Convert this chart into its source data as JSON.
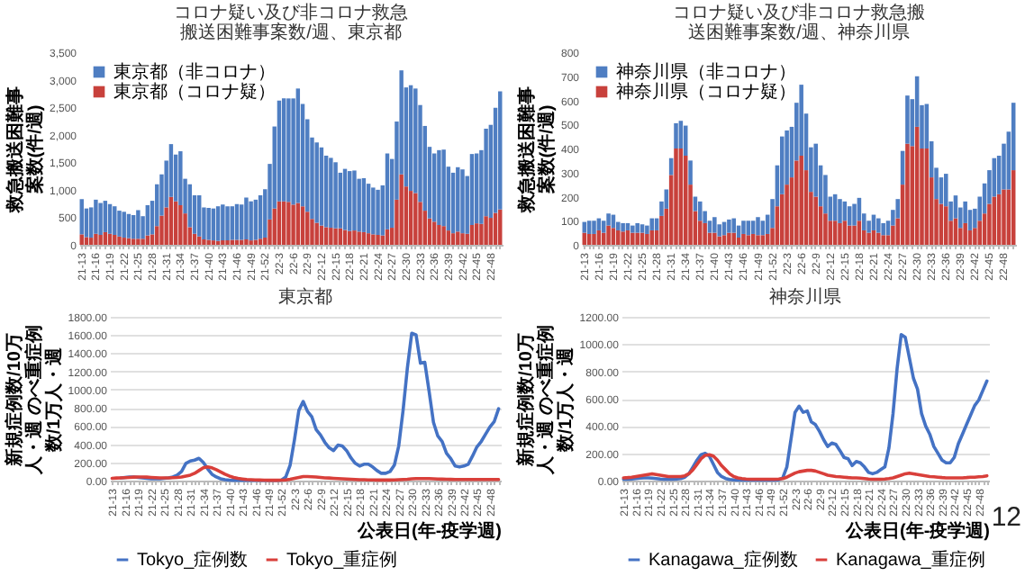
{
  "chart_data": [
    {
      "type": "bar",
      "stacked": true,
      "title": "コロナ疑い及び非コロナ救急搬送困難事案数/週、東京都",
      "ylabel": "救急搬送困難事案数(件/週)",
      "legend": "top left",
      "categories": [
        "21-13",
        null,
        null,
        "21-16",
        null,
        null,
        "21-19",
        null,
        null,
        "21-22",
        null,
        null,
        "21-25",
        null,
        null,
        "21-28",
        null,
        null,
        "21-31",
        null,
        null,
        "21-34",
        null,
        null,
        "21-37",
        null,
        null,
        "21-40",
        null,
        null,
        "21-43",
        null,
        null,
        "21-46",
        null,
        null,
        "21-49",
        null,
        null,
        "21-52",
        null,
        null,
        "22-3",
        null,
        null,
        "22-6",
        null,
        null,
        "22-9",
        null,
        null,
        "22-12",
        null,
        null,
        "22-15",
        null,
        null,
        "22-18",
        null,
        null,
        "22-21",
        null,
        null,
        "22-24",
        null,
        null,
        "22-27",
        null,
        null,
        "22-30",
        null,
        null,
        "22-33",
        null,
        null,
        "22-36",
        null,
        null,
        "22-39",
        null,
        null,
        "22-42",
        null,
        null,
        "22-45",
        null,
        null,
        "22-48",
        null,
        null
      ],
      "ylim": [
        0,
        3500
      ],
      "yticks": [
        0,
        500,
        {
          "value": 1000,
          "label": "1,000"
        },
        {
          "value": 1500,
          "label": "1,500"
        },
        {
          "value": 2000,
          "label": "2,000"
        },
        {
          "value": 2500,
          "label": "2,500"
        },
        {
          "value": 3000,
          "label": "3,000"
        },
        {
          "value": 3500,
          "label": "3,500"
        }
      ],
      "series": [
        {
          "name": "東京都（コロナ疑）",
          "color": "#c8413c",
          "values": [
            190,
            140,
            130,
            200,
            180,
            230,
            200,
            180,
            150,
            130,
            120,
            110,
            110,
            110,
            170,
            190,
            340,
            530,
            680,
            870,
            790,
            720,
            570,
            320,
            200,
            150,
            100,
            90,
            80,
            70,
            80,
            80,
            90,
            90,
            90,
            100,
            80,
            90,
            110,
            130,
            460,
            660,
            790,
            790,
            780,
            730,
            760,
            700,
            600,
            470,
            400,
            350,
            320,
            310,
            300,
            300,
            270,
            250,
            260,
            240,
            230,
            210,
            190,
            180,
            170,
            280,
            310,
            820,
            1280,
            1060,
            980,
            940,
            780,
            620,
            480,
            420,
            360,
            340,
            260,
            210,
            240,
            210,
            200,
            360,
            390,
            380,
            520,
            490,
            580,
            640
          ]
        },
        {
          "name": "東京都（非コロナ）",
          "color": "#4f7ec2",
          "values": [
            640,
            520,
            550,
            620,
            580,
            570,
            540,
            520,
            470,
            470,
            440,
            430,
            520,
            410,
            550,
            610,
            760,
            750,
            850,
            960,
            850,
            980,
            630,
            780,
            700,
            750,
            580,
            580,
            580,
            630,
            650,
            620,
            610,
            650,
            640,
            760,
            710,
            730,
            790,
            880,
            1010,
            1490,
            1830,
            1870,
            1880,
            1930,
            2080,
            1860,
            1680,
            1480,
            1460,
            1420,
            1300,
            1270,
            1200,
            1010,
            1110,
            1090,
            1090,
            960,
            980,
            900,
            850,
            820,
            910,
            1380,
            1250,
            1420,
            1890,
            1800,
            1920,
            1900,
            1760,
            1540,
            1300,
            1240,
            1360,
            1390,
            1160,
            1100,
            1170,
            1160,
            1050,
            1290,
            1270,
            1340,
            1590,
            1690,
            1910,
            2150
          ]
        }
      ]
    },
    {
      "type": "bar",
      "stacked": true,
      "title": "コロナ疑い及び非コロナ救急搬送困難事案数/週、神奈川県",
      "ylabel": "救急搬送困難事案数(件/週)",
      "legend": "top left",
      "categories": [
        "21-13",
        null,
        null,
        "21-16",
        null,
        null,
        "21-19",
        null,
        null,
        "21-22",
        null,
        null,
        "21-25",
        null,
        null,
        "21-28",
        null,
        null,
        "21-31",
        null,
        null,
        "21-34",
        null,
        null,
        "21-37",
        null,
        null,
        "21-40",
        null,
        null,
        "21-43",
        null,
        null,
        "21-46",
        null,
        null,
        "21-49",
        null,
        null,
        "21-52",
        null,
        null,
        "22-3",
        null,
        null,
        "22-6",
        null,
        null,
        "22-9",
        null,
        null,
        "22-12",
        null,
        null,
        "22-15",
        null,
        null,
        "22-18",
        null,
        null,
        "22-21",
        null,
        null,
        "22-24",
        null,
        null,
        "22-27",
        null,
        null,
        "22-30",
        null,
        null,
        "22-33",
        null,
        null,
        "22-36",
        null,
        null,
        "22-39",
        null,
        null,
        "22-42",
        null,
        null,
        "22-45",
        null,
        null,
        "22-48",
        null,
        null
      ],
      "ylim": [
        0,
        800
      ],
      "yticks": [
        0,
        100,
        200,
        300,
        400,
        500,
        600,
        700,
        800
      ],
      "series": [
        {
          "name": "神奈川県（コロナ疑）",
          "color": "#c8413c",
          "values": [
            50,
            45,
            45,
            60,
            50,
            80,
            70,
            60,
            55,
            60,
            50,
            50,
            50,
            45,
            60,
            60,
            120,
            150,
            290,
            400,
            400,
            370,
            250,
            140,
            100,
            90,
            50,
            50,
            35,
            40,
            50,
            50,
            30,
            45,
            40,
            45,
            40,
            40,
            45,
            70,
            160,
            210,
            250,
            280,
            350,
            370,
            310,
            220,
            200,
            160,
            130,
            100,
            100,
            90,
            100,
            80,
            80,
            100,
            60,
            50,
            60,
            50,
            40,
            40,
            80,
            110,
            250,
            420,
            410,
            490,
            400,
            400,
            280,
            190,
            170,
            160,
            100,
            110,
            70,
            90,
            60,
            70,
            100,
            130,
            170,
            200,
            210,
            230,
            230,
            310
          ]
        },
        {
          "name": "神奈川県（非コロナ）",
          "color": "#4f7ec2",
          "values": [
            45,
            55,
            55,
            50,
            50,
            50,
            55,
            35,
            35,
            30,
            30,
            40,
            35,
            35,
            50,
            50,
            60,
            80,
            70,
            105,
            115,
            125,
            100,
            60,
            80,
            50,
            50,
            65,
            50,
            55,
            55,
            60,
            50,
            55,
            60,
            55,
            75,
            60,
            80,
            120,
            170,
            240,
            225,
            210,
            240,
            295,
            235,
            185,
            220,
            170,
            160,
            100,
            110,
            100,
            80,
            80,
            90,
            95,
            70,
            50,
            65,
            60,
            50,
            60,
            65,
            80,
            140,
            200,
            195,
            210,
            180,
            185,
            150,
            130,
            110,
            135,
            80,
            95,
            85,
            90,
            85,
            80,
            100,
            125,
            140,
            160,
            160,
            190,
            240,
            280
          ]
        }
      ]
    },
    {
      "type": "line",
      "title": "東京都",
      "xlabel": "公表日(年-疫学週)",
      "ylabel": "新規症例数/10万人・週 のべ重症例数/1万人・週",
      "legend": "bottom",
      "grid": "y",
      "categories": [
        "21-13",
        null,
        null,
        "21-16",
        null,
        null,
        "21-19",
        null,
        null,
        "21-22",
        null,
        null,
        "21-25",
        null,
        null,
        "21-28",
        null,
        null,
        "21-31",
        null,
        null,
        "21-34",
        null,
        null,
        "21-37",
        null,
        null,
        "21-40",
        null,
        null,
        "21-43",
        null,
        null,
        "21-46",
        null,
        null,
        "21-49",
        null,
        null,
        "21-52",
        null,
        null,
        "22-3",
        null,
        null,
        "22-6",
        null,
        null,
        "22-9",
        null,
        null,
        "22-12",
        null,
        null,
        "22-15",
        null,
        null,
        "22-18",
        null,
        null,
        "22-21",
        null,
        null,
        "22-24",
        null,
        null,
        "22-27",
        null,
        null,
        "22-30",
        null,
        null,
        "22-33",
        null,
        null,
        "22-36",
        null,
        null,
        "22-39",
        null,
        null,
        "22-42",
        null,
        null,
        "22-45",
        null,
        null,
        "22-48",
        null,
        null
      ],
      "ylim": [
        0,
        1800
      ],
      "yticks": [
        {
          "value": 0,
          "label": "0.00"
        },
        {
          "value": 200,
          "label": "200.00"
        },
        {
          "value": 400,
          "label": "400.00"
        },
        {
          "value": 600,
          "label": "600.00"
        },
        {
          "value": 800,
          "label": "800.00"
        },
        {
          "value": 1000,
          "label": "1000.00"
        },
        {
          "value": 1200,
          "label": "1200.00"
        },
        {
          "value": 1400,
          "label": "1400.00"
        },
        {
          "value": 1600,
          "label": "1600.00"
        },
        {
          "value": 1800,
          "label": "1800.00"
        }
      ],
      "series": [
        {
          "name": "Tokyo_症例数",
          "color": "#4472c4",
          "values": [
            null,
            null,
            30,
            35,
            40,
            40,
            35,
            30,
            25,
            20,
            20,
            20,
            25,
            30,
            40,
            60,
            100,
            190,
            215,
            225,
            245,
            200,
            130,
            70,
            40,
            20,
            10,
            5,
            3,
            2,
            2,
            2,
            2,
            2,
            2,
            2,
            2,
            2,
            3,
            5,
            40,
            170,
            450,
            770,
            870,
            760,
            700,
            560,
            500,
            420,
            360,
            330,
            390,
            380,
            330,
            250,
            190,
            160,
            180,
            180,
            150,
            110,
            80,
            80,
            100,
            170,
            380,
            770,
            1240,
            1620,
            1600,
            1290,
            1300,
            980,
            640,
            490,
            430,
            300,
            240,
            160,
            150,
            160,
            180,
            270,
            370,
            430,
            510,
            590,
            650,
            790
          ]
        },
        {
          "name": "Tokyo_重症例",
          "color": "#d93f3a",
          "values": [
            25,
            28,
            30,
            32,
            35,
            38,
            40,
            40,
            38,
            35,
            32,
            30,
            30,
            30,
            32,
            35,
            40,
            50,
            60,
            80,
            110,
            140,
            150,
            140,
            120,
            95,
            70,
            50,
            35,
            25,
            18,
            12,
            10,
            8,
            6,
            5,
            4,
            4,
            4,
            5,
            8,
            15,
            25,
            35,
            45,
            45,
            42,
            40,
            35,
            30,
            28,
            25,
            22,
            20,
            18,
            15,
            12,
            10,
            10,
            8,
            8,
            6,
            6,
            6,
            6,
            8,
            10,
            12,
            15,
            20,
            22,
            22,
            22,
            22,
            20,
            18,
            16,
            15,
            14,
            13,
            12,
            12,
            12,
            12,
            12,
            12,
            12,
            12,
            12,
            12
          ]
        }
      ]
    },
    {
      "type": "line",
      "title": "神奈川県",
      "xlabel": "公表日(年-疫学週)",
      "ylabel": "新規症例数/10万人・週 のべ重症例数/1万人・週",
      "legend": "bottom",
      "grid": "y",
      "annotations": [
        "12"
      ],
      "categories": [
        "21-13",
        null,
        null,
        "21-16",
        null,
        null,
        "21-19",
        null,
        null,
        "21-22",
        null,
        null,
        "21-25",
        null,
        null,
        "21-28",
        null,
        null,
        "21-31",
        null,
        null,
        "21-34",
        null,
        null,
        "21-37",
        null,
        null,
        "21-40",
        null,
        null,
        "21-43",
        null,
        null,
        "21-46",
        null,
        null,
        "21-49",
        null,
        null,
        "21-52",
        null,
        null,
        "22-3",
        null,
        null,
        "22-6",
        null,
        null,
        "22-9",
        null,
        null,
        "22-12",
        null,
        null,
        "22-15",
        null,
        null,
        "22-18",
        null,
        null,
        "22-21",
        null,
        null,
        "22-24",
        null,
        null,
        "22-27",
        null,
        null,
        "22-30",
        null,
        null,
        "22-33",
        null,
        null,
        "22-36",
        null,
        null,
        "22-39",
        null,
        null,
        "22-42",
        null,
        null,
        "22-45",
        null,
        null,
        "22-48",
        null,
        null
      ],
      "ylim": [
        0,
        1200
      ],
      "yticks": [
        {
          "value": 0,
          "label": "0.00"
        },
        {
          "value": 200,
          "label": "200.00"
        },
        {
          "value": 400,
          "label": "400.00"
        },
        {
          "value": 600,
          "label": "600.00"
        },
        {
          "value": 800,
          "label": "800.00"
        },
        {
          "value": 1000,
          "label": "1000.00"
        },
        {
          "value": 1200,
          "label": "1200.00"
        }
      ],
      "series": [
        {
          "name": "Kanagawa_症例数",
          "color": "#4472c4",
          "values": [
            10,
            10,
            12,
            15,
            18,
            20,
            20,
            18,
            15,
            12,
            10,
            10,
            10,
            12,
            15,
            25,
            50,
            100,
            150,
            190,
            200,
            180,
            120,
            60,
            30,
            15,
            8,
            5,
            3,
            3,
            3,
            3,
            3,
            3,
            3,
            3,
            3,
            3,
            5,
            20,
            100,
            300,
            500,
            545,
            500,
            510,
            430,
            410,
            360,
            300,
            250,
            275,
            265,
            220,
            170,
            160,
            110,
            140,
            130,
            100,
            60,
            50,
            60,
            80,
            100,
            240,
            490,
            820,
            1070,
            1050,
            900,
            750,
            670,
            490,
            400,
            340,
            250,
            200,
            150,
            130,
            130,
            170,
            270,
            340,
            410,
            480,
            550,
            590,
            660,
            730
          ]
        },
        {
          "name": "Kanagawa_重症例",
          "color": "#d93f3a",
          "values": [
            20,
            22,
            25,
            30,
            35,
            40,
            45,
            50,
            45,
            40,
            35,
            30,
            30,
            30,
            30,
            35,
            50,
            80,
            120,
            160,
            185,
            190,
            180,
            150,
            110,
            80,
            50,
            30,
            20,
            15,
            12,
            10,
            10,
            10,
            10,
            10,
            10,
            10,
            12,
            15,
            25,
            40,
            55,
            65,
            70,
            75,
            75,
            70,
            60,
            50,
            40,
            35,
            30,
            28,
            25,
            22,
            20,
            20,
            18,
            15,
            12,
            10,
            10,
            10,
            12,
            15,
            20,
            30,
            40,
            50,
            55,
            50,
            45,
            40,
            35,
            30,
            28,
            25,
            22,
            20,
            20,
            20,
            20,
            20,
            22,
            25,
            25,
            28,
            30,
            35
          ]
        }
      ]
    }
  ]
}
